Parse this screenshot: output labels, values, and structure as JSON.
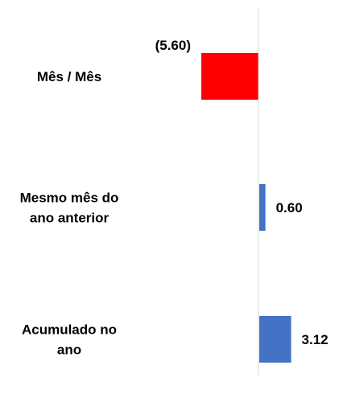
{
  "chart_data": {
    "type": "bar",
    "orientation": "horizontal",
    "categories": [
      [
        "Mês / Mês"
      ],
      [
        "Mesmo mês do",
        "ano anterior"
      ],
      [
        "Acumulado no",
        "ano"
      ]
    ],
    "values": [
      -5.6,
      0.6,
      3.12
    ],
    "data_labels": [
      "(5.60)",
      "0.60",
      "3.12"
    ],
    "colors": {
      "negative": "#FF0000",
      "positive": "#4472C4",
      "zero_line": "#D9D9D9"
    },
    "grid": false,
    "legend": "none"
  }
}
